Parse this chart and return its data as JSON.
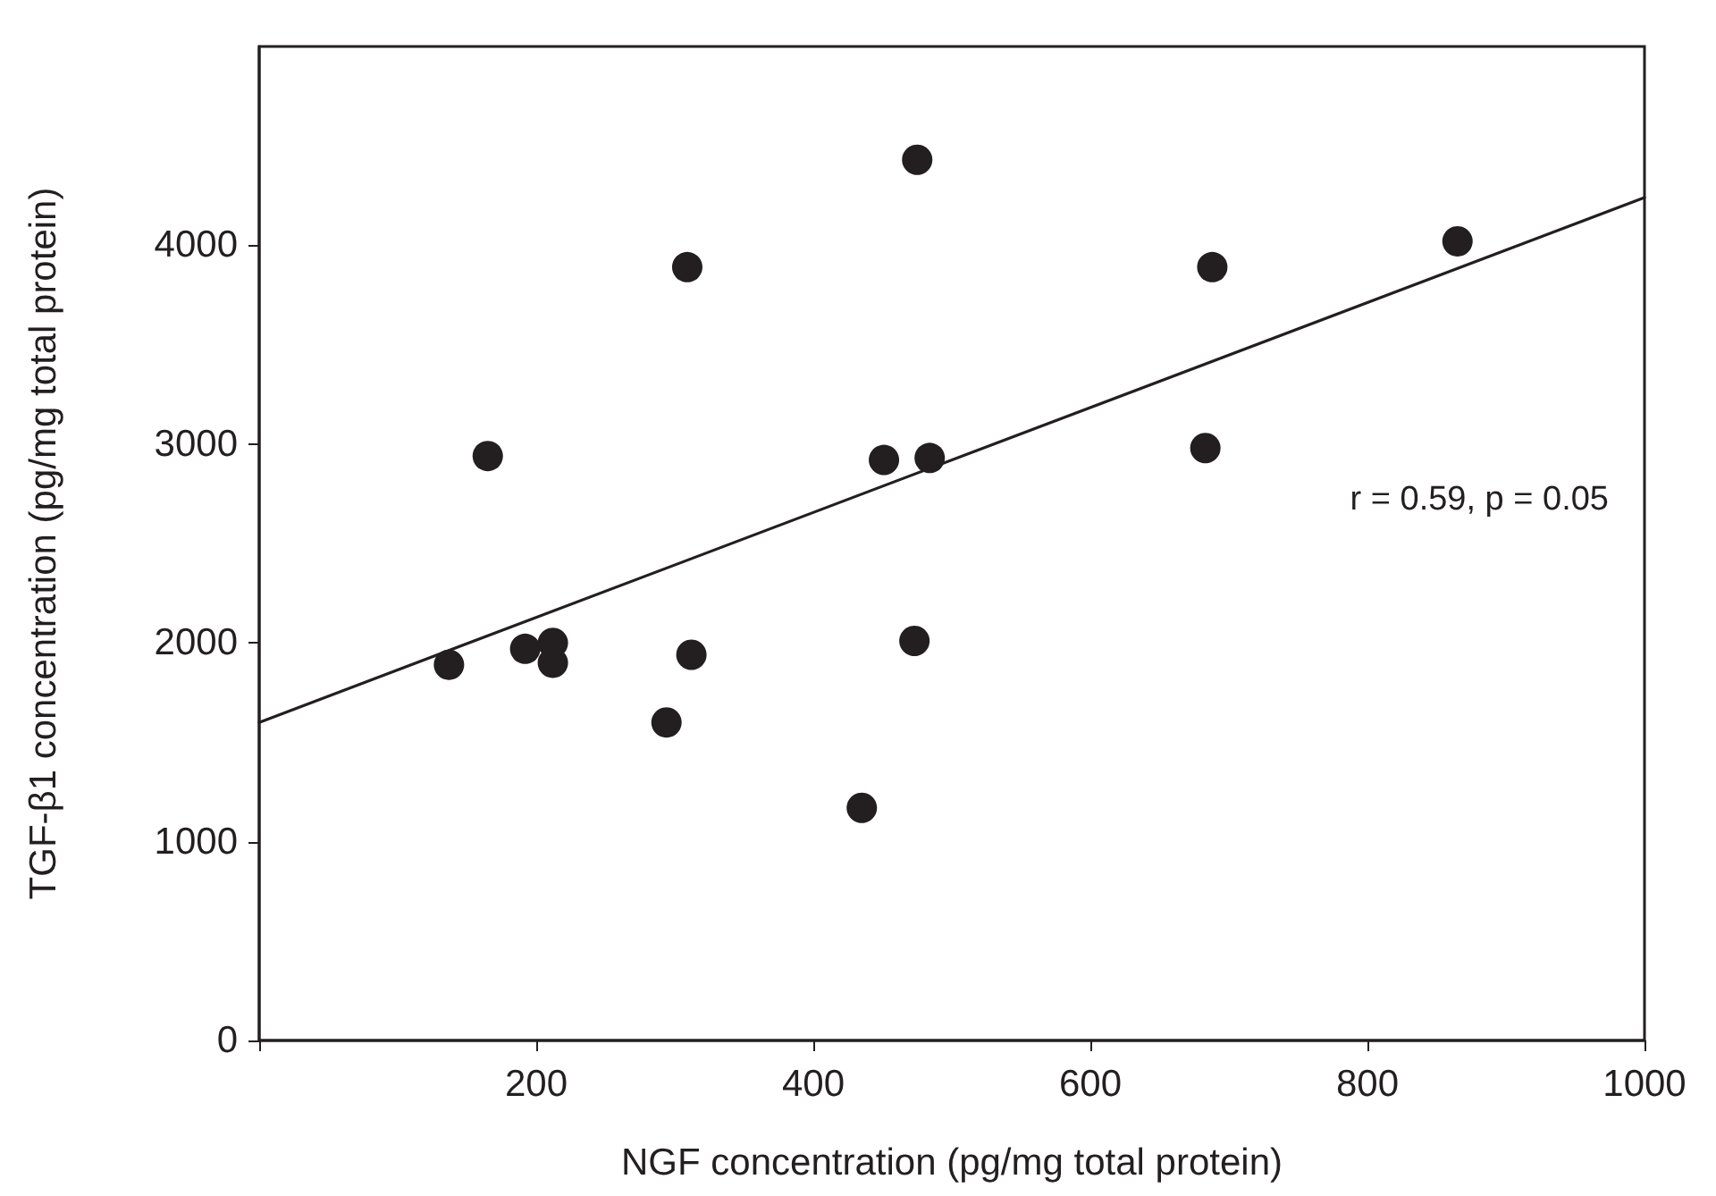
{
  "chart_data": {
    "type": "scatter",
    "xlabel": "NGF concentration (pg/mg total protein)",
    "ylabel": "TGF-β1 concentration (pg/mg total protein)",
    "xlim": [
      0,
      1000
    ],
    "ylim": [
      0,
      5000
    ],
    "xticks": [
      {
        "value": 0,
        "label": null
      },
      200,
      400,
      600,
      800,
      1000
    ],
    "yticks": [
      0,
      1000,
      2000,
      3000,
      4000
    ],
    "grid": false,
    "marker": "circle",
    "series": [
      {
        "color": "#231f20",
        "x": [
          475,
          309,
          165,
          451,
          484,
          137,
          192,
          212,
          212,
          312,
          294,
          435,
          473,
          688,
          683,
          865
        ],
        "values": [
          4430,
          3890,
          2940,
          2920,
          2930,
          1890,
          1970,
          2000,
          1900,
          1940,
          1600,
          1170,
          2010,
          3890,
          2980,
          4020
        ]
      },
      {
        "type": "line",
        "color": "#231f20",
        "marker": "none",
        "line_style": "solid",
        "x": [
          0,
          1000
        ],
        "values": [
          1600,
          4240
        ]
      }
    ],
    "annotations": [
      "r = 0.59, p = 0.05"
    ]
  }
}
